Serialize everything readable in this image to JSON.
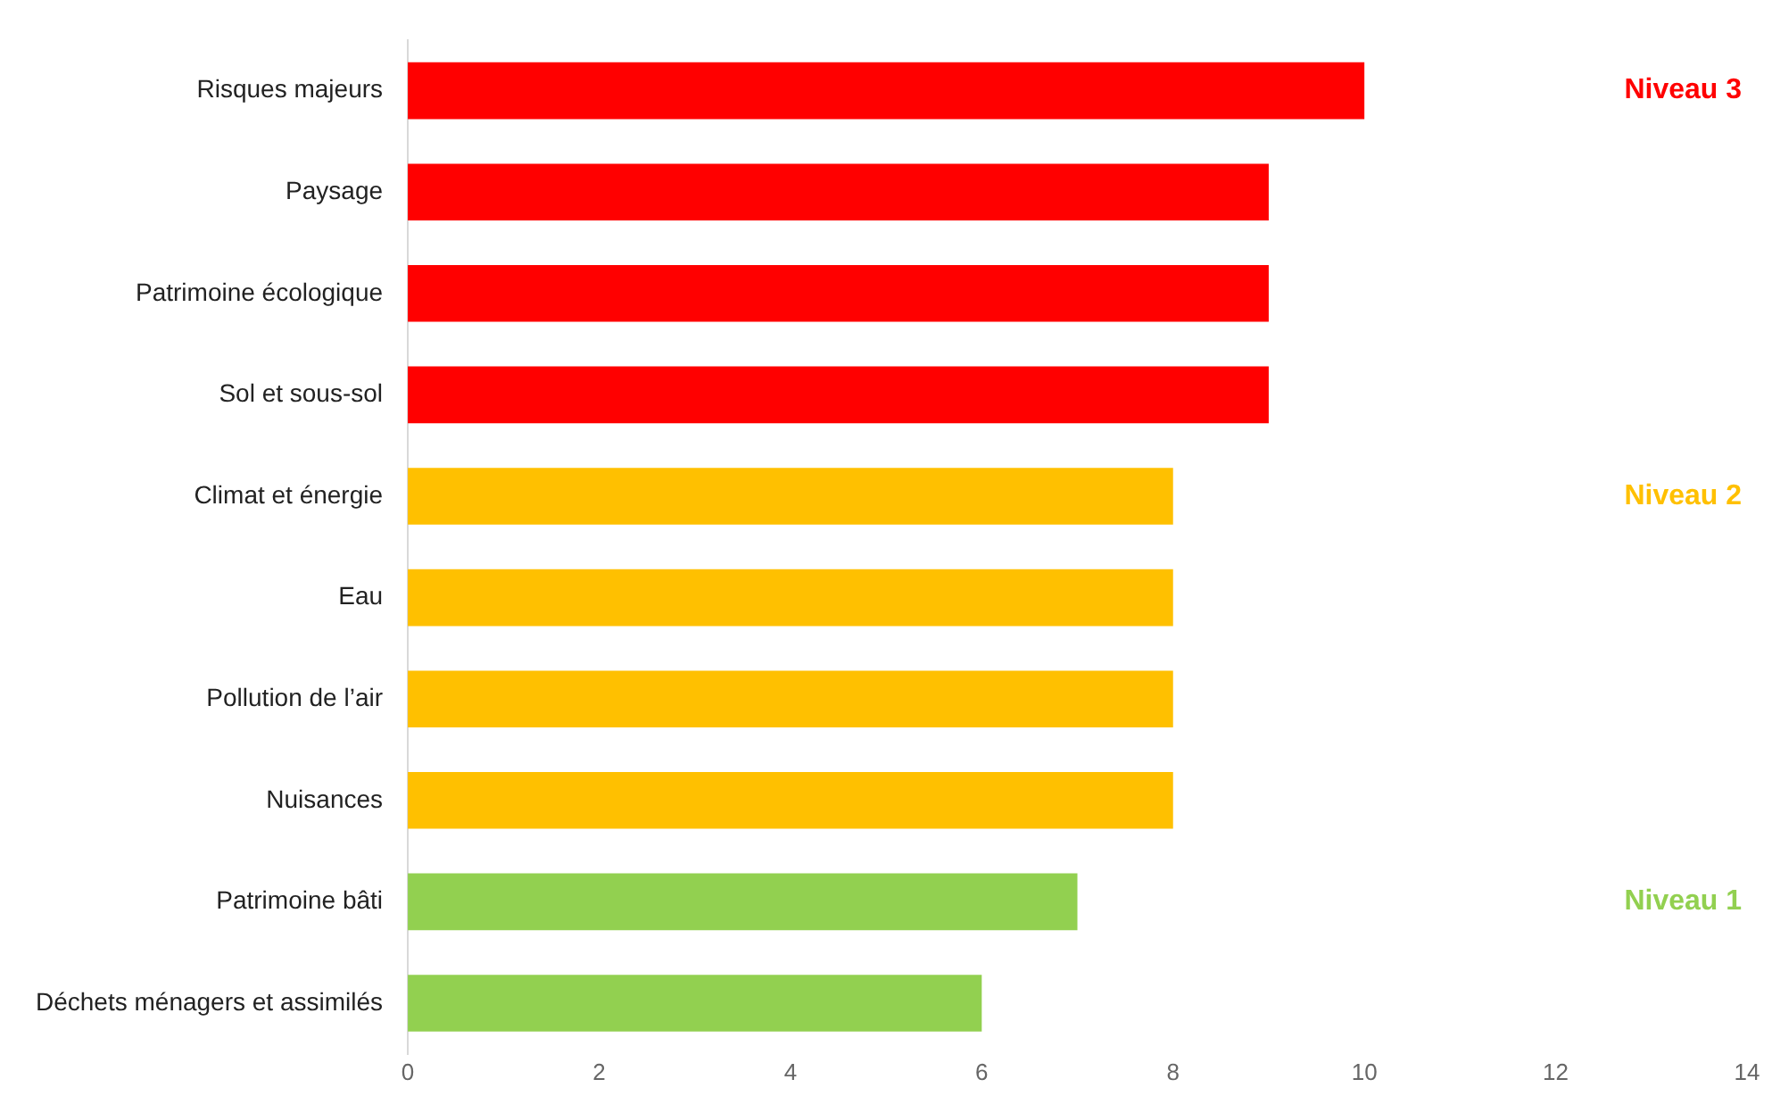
{
  "chart_data": {
    "type": "bar",
    "orientation": "horizontal",
    "categories": [
      "Risques majeurs",
      "Paysage",
      "Patrimoine écologique",
      "Sol et sous-sol",
      "Climat et énergie",
      "Eau",
      "Pollution de l’air",
      "Nuisances",
      "Patrimoine bâti",
      "Déchets ménagers et assimilés"
    ],
    "values": [
      10,
      9,
      9,
      9,
      8,
      8,
      8,
      8,
      7,
      6
    ],
    "colors": [
      "#ff0000",
      "#ff0000",
      "#ff0000",
      "#ff0000",
      "#ffc000",
      "#ffc000",
      "#ffc000",
      "#ffc000",
      "#92d050",
      "#92d050"
    ],
    "xlim": [
      0,
      14
    ],
    "xticks": [
      0,
      2,
      4,
      6,
      8,
      10,
      12,
      14
    ],
    "annotations": [
      "Niveau 3",
      "Niveau 2",
      "Niveau 1"
    ]
  }
}
